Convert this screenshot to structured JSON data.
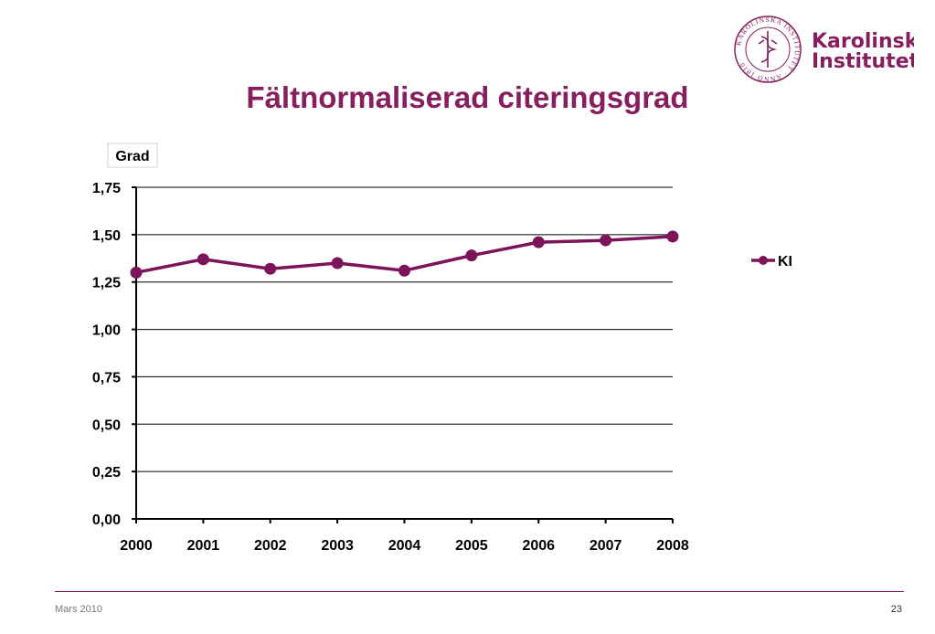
{
  "header": {
    "logo_line1": "Karolinska",
    "logo_line2": "Institutet",
    "seal_text": "KAROLINSKA INSTITUTET · ANNO 1810"
  },
  "slide": {
    "title": "Fältnormaliserad citeringsgrad"
  },
  "chart_data": {
    "type": "line",
    "title": "Fältnormaliserad citeringsgrad",
    "ylabel": "Grad",
    "xlabel": "",
    "categories": [
      "2000",
      "2001",
      "2002",
      "2003",
      "2004",
      "2005",
      "2006",
      "2007",
      "2008"
    ],
    "series": [
      {
        "name": "KI",
        "values": [
          1.3,
          1.37,
          1.32,
          1.35,
          1.31,
          1.39,
          1.46,
          1.47,
          1.49
        ],
        "color": "#7b1459"
      }
    ],
    "ylim": [
      0,
      1.75
    ],
    "yticks": [
      "0,00",
      "0,25",
      "0,50",
      "0,75",
      "1,00",
      "1,25",
      "1,50",
      "1,75"
    ],
    "grid": true,
    "legend": "right"
  },
  "footer": {
    "date": "Mars 2010",
    "page_number": "23"
  },
  "colors": {
    "brand": "#871f5e",
    "series": "#7b1459"
  }
}
